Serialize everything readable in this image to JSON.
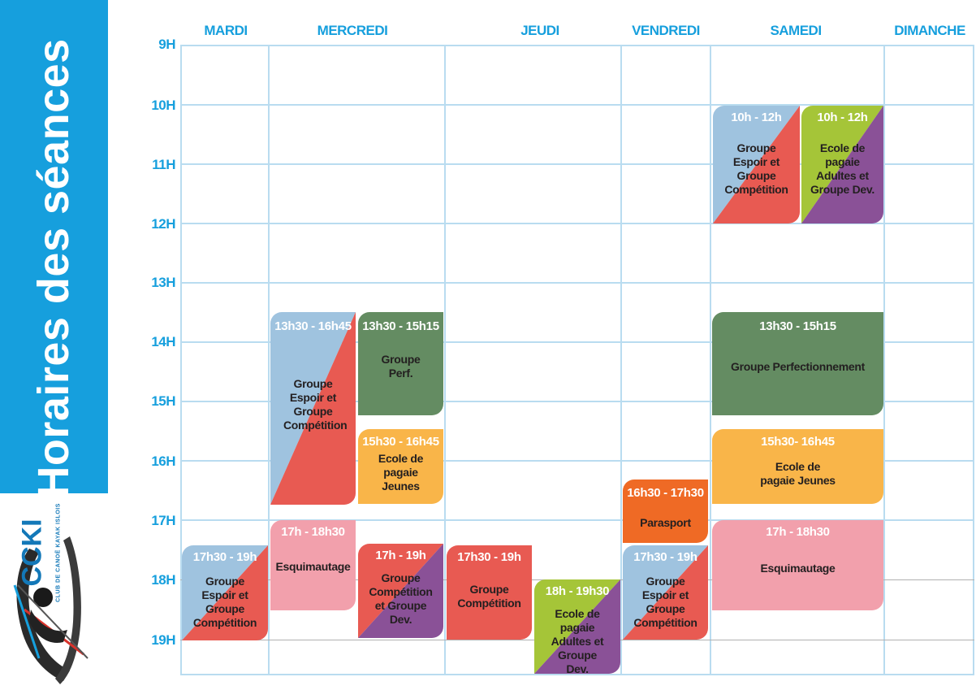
{
  "title": "Horaires des séances",
  "logo": {
    "name": "CCKI",
    "subtitle": "CLUB DE CANOË KAYAK ISLOIS"
  },
  "days": [
    "MARDI",
    "MERCREDI",
    "JEUDI",
    "VENDREDI",
    "SAMEDI",
    "DIMANCHE"
  ],
  "hours": [
    "9H",
    "10H",
    "11H",
    "12H",
    "13H",
    "14H",
    "15H",
    "16H",
    "17H",
    "18H",
    "19H"
  ],
  "colors": {
    "blue": "#169fdd",
    "light_blue": "#9fc3df",
    "red": "#e85a52",
    "green": "#648c62",
    "yellow": "#f9b549",
    "orange": "#ef6a25",
    "pink": "#f2a0ac",
    "purple": "#8a5197",
    "lime": "#a5c538"
  },
  "sessions": {
    "mardi_1": {
      "time": "17h30 - 19h",
      "label": "Groupe Espoir et Groupe Compétition"
    },
    "mercredi_1": {
      "time": "13h30 - 16h45",
      "label": "Groupe Espoir et Groupe Compétition"
    },
    "mercredi_2": {
      "time": "13h30 - 15h15",
      "label": "Groupe Perf."
    },
    "mercredi_3": {
      "time": "15h30 - 16h45",
      "label": "Ecole de pagaie Jeunes"
    },
    "mercredi_4": {
      "time": "17h - 18h30",
      "label": "Esquimautage"
    },
    "mercredi_5": {
      "time": "17h - 19h",
      "label": "Groupe Compétition et Groupe Dev."
    },
    "jeudi_1": {
      "time": "17h30 - 19h",
      "label": "Groupe Compétition"
    },
    "jeudi_2": {
      "time": "18h - 19h30",
      "label": "Ecole de pagaie Adultes et Groupe Dev."
    },
    "vendredi_1": {
      "time": "16h30 - 17h30",
      "label": "Parasport"
    },
    "vendredi_2": {
      "time": "17h30 - 19h",
      "label": "Groupe Espoir et Groupe Compétition"
    },
    "samedi_1": {
      "time": "10h - 12h",
      "label": "Groupe Espoir et Groupe Compétition"
    },
    "samedi_2": {
      "time": "10h - 12h",
      "label": "Ecole de pagaie Adultes et Groupe Dev."
    },
    "samedi_3": {
      "time": "13h30 - 15h15",
      "label": "Groupe Perfectionnement"
    },
    "samedi_4": {
      "time": "15h30- 16h45",
      "label": "Ecole de pagaie Jeunes"
    },
    "samedi_5": {
      "time": "17h - 18h30",
      "label": "Esquimautage"
    }
  }
}
